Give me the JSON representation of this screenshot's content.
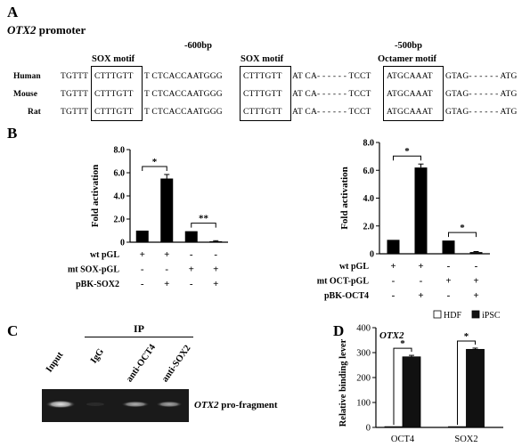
{
  "panels": {
    "A": "A",
    "B": "B",
    "C": "C",
    "D": "D"
  },
  "panelA": {
    "title_gene": "OTX2",
    "title_rest": " promoter",
    "pos600": "-600bp",
    "pos500": "-500bp",
    "motif1": "SOX motif",
    "motif2": "SOX motif",
    "motif3": "Octamer motif",
    "rows": [
      {
        "species": "Human",
        "pre": "TGTTT",
        "m1": "CTTTGTT",
        "mid1": "T CTCACCAATGGG",
        "m2": "CTTTGTT",
        "mid2": "AT CA- - - - - - TCCT",
        "m3": "ATGCAAAT",
        "post": "GTAG- - - - - - ATG"
      },
      {
        "species": "Mouse",
        "pre": "TGTTT",
        "m1": "CTTTGTT",
        "mid1": "T CTCACCAATGGG",
        "m2": "CTTTGTT",
        "mid2": "AT CA- - - - - - TCCT",
        "m3": "ATGCAAAT",
        "post": "GTAG- - - - - - ATG"
      },
      {
        "species": "Rat",
        "pre": "TGTTT",
        "m1": "CTTTGTT",
        "mid1": "T CTCACCAATGGG",
        "m2": "CTTTGTT",
        "mid2": "AT CA- - - - - - TCCT",
        "m3": "ATGCAAAT",
        "post": "GTAG- - - - - - ATG"
      }
    ]
  },
  "chart_data": [
    {
      "type": "bar",
      "ylabel": "Fold activation",
      "ylim": [
        0,
        8
      ],
      "yticks": [
        "0",
        "2.0",
        "4.0",
        "6.0",
        "8.0"
      ],
      "values": [
        1.0,
        5.5,
        0.95,
        0.08
      ],
      "errors": [
        0,
        0.35,
        0,
        0.05
      ],
      "conditions": [
        {
          "name": "wt pGL",
          "marks": [
            "+",
            "+",
            "-",
            "-"
          ]
        },
        {
          "name": "mt SOX-pGL",
          "marks": [
            "-",
            "-",
            "+",
            "+"
          ]
        },
        {
          "name": "pBK-SOX2",
          "marks": [
            "-",
            "+",
            "-",
            "+"
          ]
        }
      ],
      "sig": [
        {
          "label": "*"
        },
        {
          "label": "**"
        }
      ]
    },
    {
      "type": "bar",
      "ylabel": "Fold activation",
      "ylim": [
        0,
        8
      ],
      "yticks": [
        "0",
        "2.0",
        "4.0",
        "6.0",
        "8.0"
      ],
      "values": [
        1.0,
        6.2,
        0.95,
        0.12
      ],
      "errors": [
        0,
        0.25,
        0,
        0.04
      ],
      "conditions": [
        {
          "name": "wt pGL",
          "marks": [
            "+",
            "+",
            "-",
            "-"
          ]
        },
        {
          "name": "mt OCT-pGL",
          "marks": [
            "-",
            "-",
            "+",
            "+"
          ]
        },
        {
          "name": "pBK-OCT4",
          "marks": [
            "-",
            "+",
            "-",
            "+"
          ]
        }
      ],
      "sig": [
        {
          "label": "*"
        },
        {
          "label": "*"
        }
      ]
    },
    {
      "type": "bar",
      "title": "OTX2",
      "ylabel": "Relative binding lever",
      "ylim": [
        0,
        400
      ],
      "yticks": [
        "0",
        "100",
        "200",
        "300",
        "400"
      ],
      "categories": [
        "OCT4",
        "SOX2"
      ],
      "series": [
        {
          "name": "HDF",
          "color": "#ffffff",
          "values": [
            3,
            3
          ]
        },
        {
          "name": "iPSC",
          "color": "#111111",
          "values": [
            283,
            313
          ]
        }
      ],
      "errors": [
        6,
        5
      ],
      "sig": [
        "*",
        "*"
      ]
    }
  ],
  "panelC": {
    "ip_label": "IP",
    "lanes": [
      "Input",
      "IgG",
      "anti-OCT4",
      "anti-SOX2"
    ],
    "band_gene": "OTX2",
    "band_rest": " pro-fragment"
  }
}
